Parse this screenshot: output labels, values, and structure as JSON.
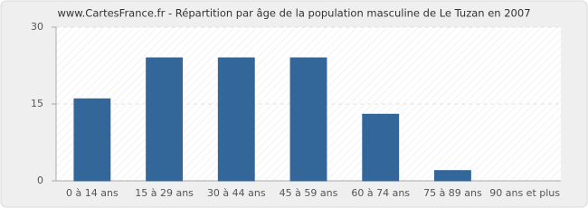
{
  "chart_data": {
    "type": "bar",
    "title": "www.CartesFrance.fr - Répartition par âge de la population masculine de Le Tuzan en 2007",
    "categories": [
      "0 à 14 ans",
      "15 à 29 ans",
      "30 à 44 ans",
      "45 à 59 ans",
      "60 à 74 ans",
      "75 à 89 ans",
      "90 ans et plus"
    ],
    "values": [
      16,
      24,
      24,
      24,
      13,
      2,
      0
    ],
    "color": "#336699",
    "ylim": [
      0,
      30
    ],
    "yticks": [
      0,
      15,
      30
    ],
    "grid": true
  }
}
